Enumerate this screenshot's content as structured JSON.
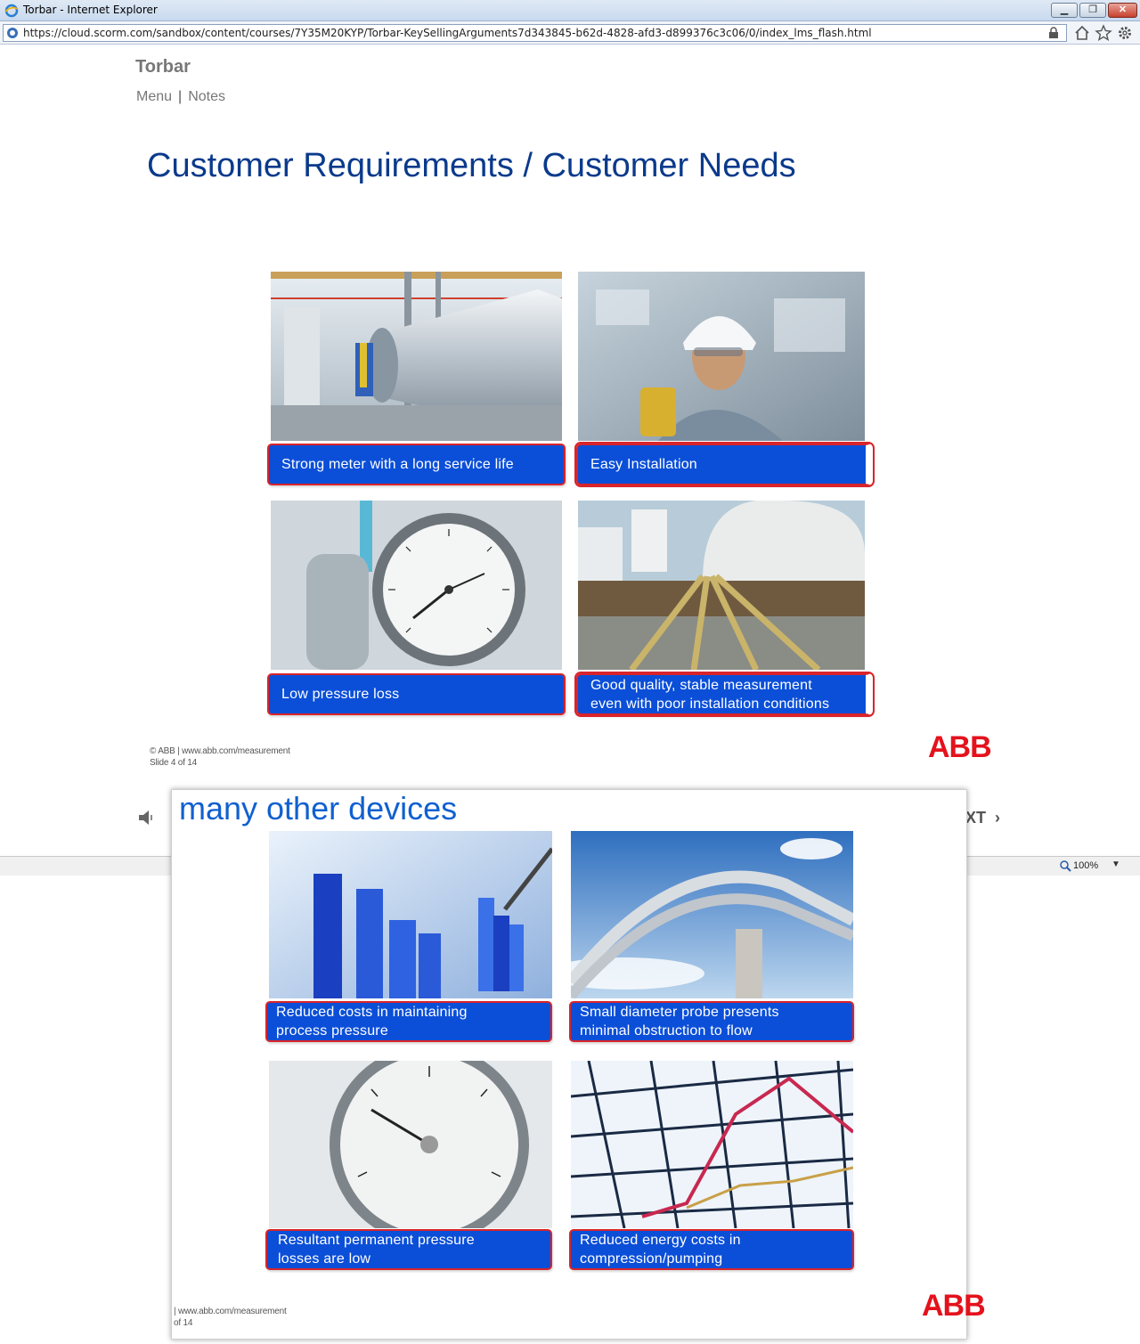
{
  "browser": {
    "window_title": "Torbar - Internet Explorer",
    "url": "https://cloud.scorm.com/sandbox/content/courses/7Y35M20KYP/Torbar-KeySellingArguments7d343845-b62d-4828-afd3-d899376c3c06/0/index_lms_flash.html",
    "zoom": "100%"
  },
  "course": {
    "title": "Torbar",
    "nav": {
      "menu": "Menu",
      "separator": "|",
      "notes": "Notes"
    }
  },
  "slide": {
    "title": "Customer Requirements / Customer Needs",
    "cards": [
      {
        "caption": "Strong meter with a long service life",
        "image": "pipeline-meter-photo"
      },
      {
        "caption": "Easy Installation",
        "image": "technician-photo"
      },
      {
        "caption": "Low pressure loss",
        "image": "pressure-gauge-photo"
      },
      {
        "caption_line1": "Good quality, stable measurement",
        "caption_line2": "even with poor installation conditions",
        "image": "pipelines-tanks-photo"
      }
    ],
    "footer": {
      "line1": "© ABB | www.abb.com/measurement",
      "line2": "Slide 4 of 14",
      "logo": "ABB"
    }
  },
  "player": {
    "next_label_partial": "XT"
  },
  "overlay": {
    "title": "many other devices",
    "cards": [
      {
        "caption_line1": "Reduced costs in maintaining",
        "caption_line2": "process pressure",
        "image": "bar-chart-photo"
      },
      {
        "caption_line1": "Small diameter probe presents",
        "caption_line2": "minimal obstruction to flow",
        "image": "pipe-bridge-photo"
      },
      {
        "caption_line1": "Resultant permanent pressure",
        "caption_line2": "losses are low",
        "image": "gauge-closeup-photo"
      },
      {
        "caption_line1": "Reduced energy costs in",
        "caption_line2": "compression/pumping",
        "image": "line-chart-photo"
      }
    ],
    "footer": {
      "line1": "| www.abb.com/measurement",
      "line2": "of 14",
      "logo": "ABB"
    }
  },
  "colors": {
    "title_blue": "#0a3a8c",
    "caption_blue": "#0b4fd8",
    "caption_border": "#d8242a",
    "abb_red": "#e4121c"
  }
}
